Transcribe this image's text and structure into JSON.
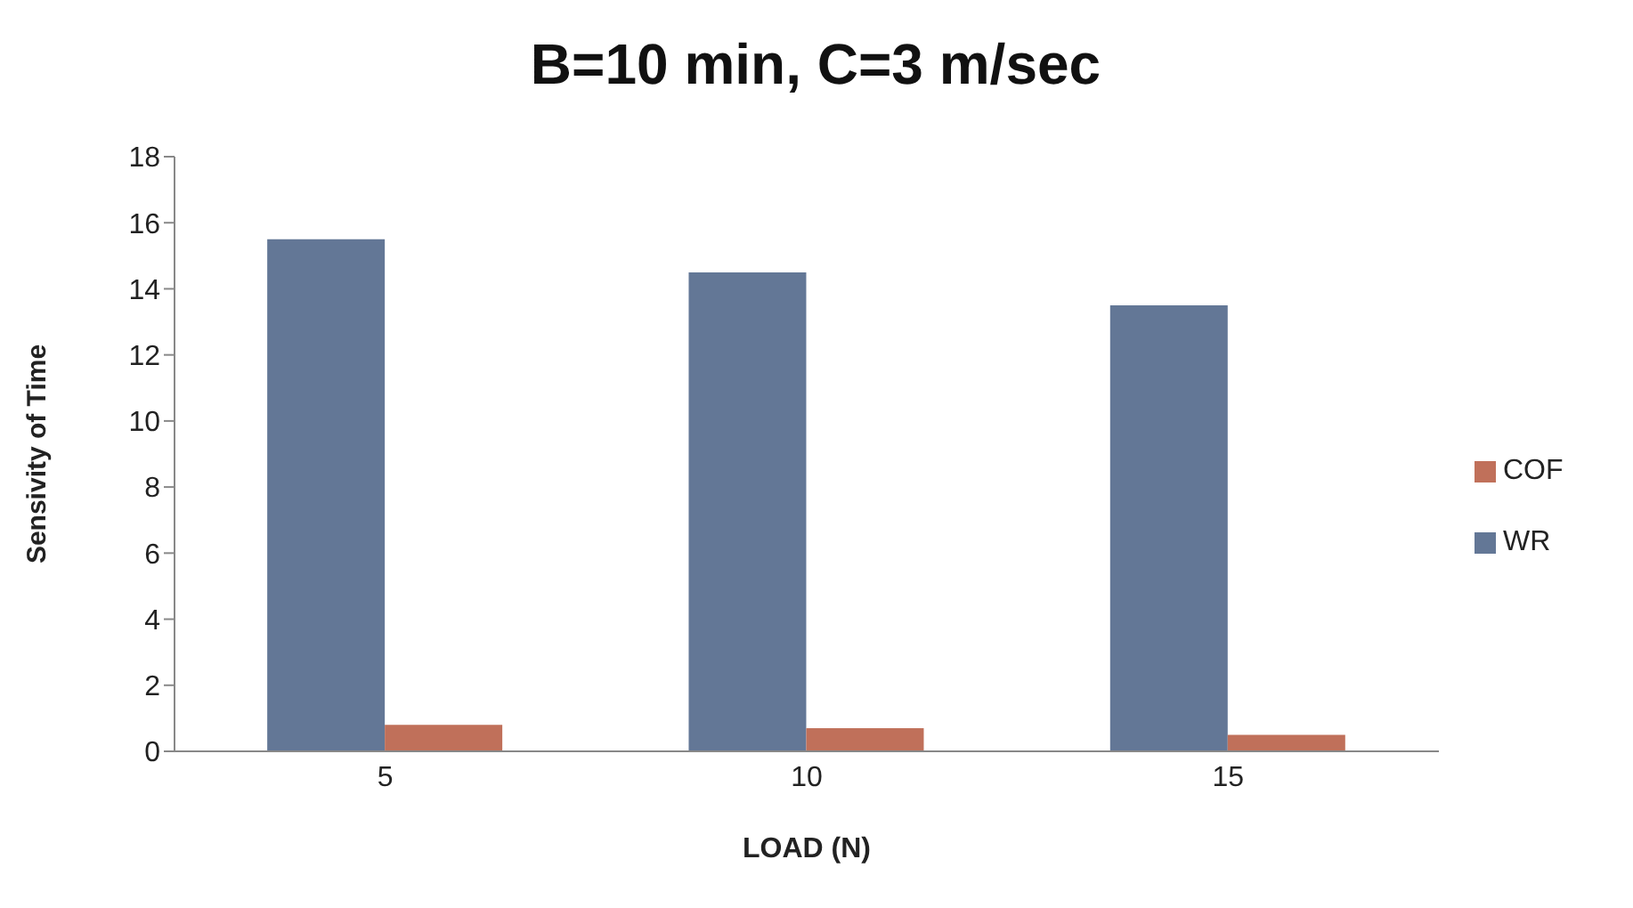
{
  "chart_data": {
    "type": "bar",
    "title": "B=10 min, C=3 m/sec",
    "xlabel": "LOAD (N)",
    "ylabel": "Sensivity of Time",
    "categories": [
      "5",
      "10",
      "15"
    ],
    "series": [
      {
        "name": "WR",
        "color": "#637796",
        "values": [
          15.5,
          14.5,
          13.5
        ]
      },
      {
        "name": "COF",
        "color": "#c0705a",
        "values": [
          0.8,
          0.7,
          0.5
        ]
      }
    ],
    "ylim": [
      0,
      18
    ],
    "yticks": [
      0,
      2,
      4,
      6,
      8,
      10,
      12,
      14,
      16,
      18
    ],
    "grid": false,
    "legend": "right"
  }
}
